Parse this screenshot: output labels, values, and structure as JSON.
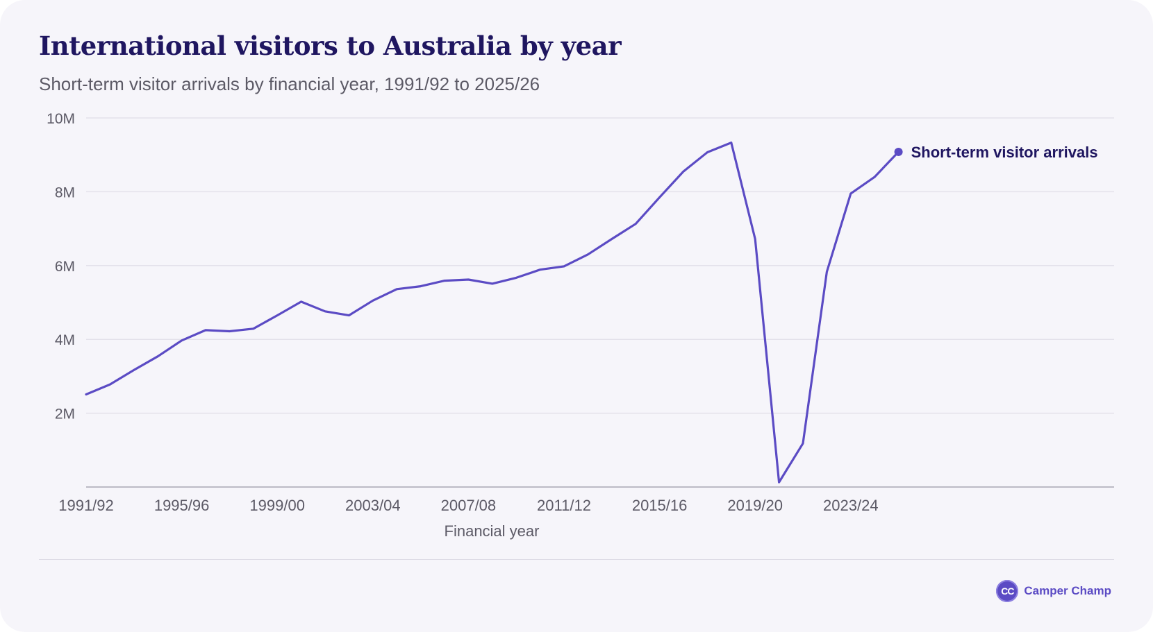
{
  "header": {
    "title": "International visitors to Australia by year",
    "subtitle": "Short-term visitor arrivals by financial year, 1991/92 to 2025/26"
  },
  "brand": {
    "logo_text": "CC",
    "name": "Camper Champ"
  },
  "colors": {
    "line": "#5b4bc4",
    "title": "#1f1660",
    "grid": "#e3e1ea",
    "axis": "#a9a7b3",
    "tick_text": "#5c5a66",
    "background": "#f6f5fa"
  },
  "chart_data": {
    "type": "line",
    "title": "International visitors to Australia by year",
    "subtitle": "Short-term visitor arrivals by financial year, 1991/92 to 2025/26",
    "xlabel": "Financial year",
    "ylabel": "",
    "ylim": [
      0,
      10000000
    ],
    "y_ticks": [
      {
        "value": 2000000,
        "label": "2M"
      },
      {
        "value": 4000000,
        "label": "4M"
      },
      {
        "value": 6000000,
        "label": "6M"
      },
      {
        "value": 8000000,
        "label": "8M"
      },
      {
        "value": 10000000,
        "label": "10M"
      }
    ],
    "x_tick_labels": [
      "1991/92",
      "1995/96",
      "1999/00",
      "2003/04",
      "2007/08",
      "2011/12",
      "2015/16",
      "2019/20",
      "2023/24"
    ],
    "grid": true,
    "legend": "inline label at end of line",
    "categories": [
      "1991/92",
      "1992/93",
      "1993/94",
      "1994/95",
      "1995/96",
      "1996/97",
      "1997/98",
      "1998/99",
      "1999/00",
      "2000/01",
      "2001/02",
      "2002/03",
      "2003/04",
      "2004/05",
      "2005/06",
      "2006/07",
      "2007/08",
      "2008/09",
      "2009/10",
      "2010/11",
      "2011/12",
      "2012/13",
      "2013/14",
      "2014/15",
      "2015/16",
      "2016/17",
      "2017/18",
      "2018/19",
      "2019/20",
      "2020/21",
      "2021/22",
      "2022/23",
      "2023/24",
      "2024/25",
      "2025/26"
    ],
    "series": [
      {
        "name": "Short-term visitor arrivals",
        "values": [
          2510000,
          2780000,
          3170000,
          3540000,
          3970000,
          4250000,
          4220000,
          4290000,
          4650000,
          5020000,
          4760000,
          4650000,
          5050000,
          5360000,
          5440000,
          5590000,
          5620000,
          5510000,
          5670000,
          5890000,
          5980000,
          6300000,
          6720000,
          7130000,
          7850000,
          8550000,
          9070000,
          9330000,
          6720000,
          130000,
          1180000,
          5830000,
          7950000,
          8400000,
          9080000
        ]
      }
    ]
  }
}
